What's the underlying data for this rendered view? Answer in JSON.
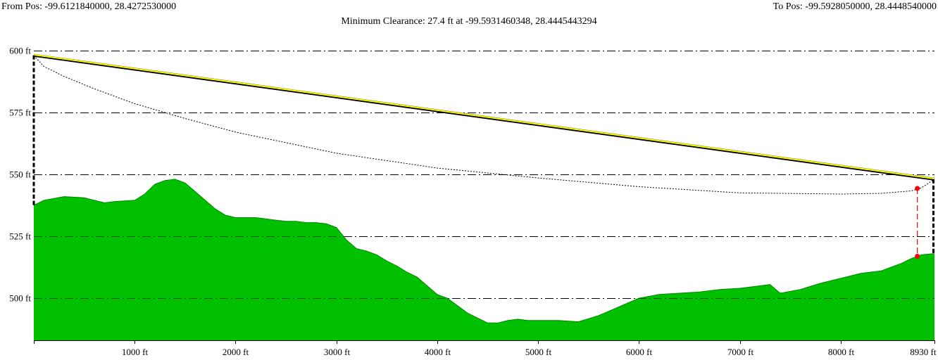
{
  "header": {
    "from_pos": "From Pos: -99.6121840000, 28.4272530000",
    "to_pos": "To Pos: -99.5928050000, 28.4448540000",
    "min_clearance": "Minimum Clearance: 27.4 ft at -99.5931460348, 28.4445443294"
  },
  "colors": {
    "terrain": "#00c000",
    "los": "#ffff00",
    "clearance_marker": "#ff0000",
    "grid": "#000000"
  },
  "chart_data": {
    "type": "area",
    "xlim": [
      0,
      8930
    ],
    "ylim": [
      483,
      605
    ],
    "x_ticks": [
      1000,
      2000,
      3000,
      4000,
      5000,
      6000,
      7000,
      8000,
      8930
    ],
    "x_tick_labels": [
      "1000 ft",
      "2000 ft",
      "3000 ft",
      "4000 ft",
      "5000 ft",
      "6000 ft",
      "7000 ft",
      "8000 ft",
      "8930 ft"
    ],
    "y_ticks": [
      500,
      525,
      550,
      575,
      600
    ],
    "y_tick_labels": [
      "500 ft",
      "525 ft",
      "550 ft",
      "575 ft",
      "600 ft"
    ],
    "grid": true,
    "terrain": {
      "x": [
        0,
        100,
        300,
        500,
        700,
        800,
        1000,
        1100,
        1200,
        1300,
        1400,
        1500,
        1600,
        1700,
        1800,
        1900,
        2000,
        2100,
        2200,
        2300,
        2400,
        2500,
        2600,
        2700,
        2800,
        2900,
        3000,
        3100,
        3200,
        3300,
        3400,
        3500,
        3600,
        3700,
        3800,
        3900,
        4000,
        4100,
        4200,
        4300,
        4400,
        4500,
        4600,
        4700,
        4800,
        4900,
        5000,
        5200,
        5400,
        5600,
        5800,
        6000,
        6200,
        6400,
        6600,
        6800,
        7000,
        7200,
        7300,
        7400,
        7600,
        7800,
        8000,
        8200,
        8400,
        8600,
        8700,
        8800,
        8930
      ],
      "y": [
        537.5,
        539.5,
        541,
        540.5,
        538.5,
        539,
        539.5,
        542,
        546,
        547.5,
        548,
        546.5,
        543,
        539.5,
        536,
        533.5,
        532.5,
        532.5,
        532.5,
        532,
        531.5,
        531,
        531,
        530.5,
        530.5,
        530,
        528.5,
        523.5,
        520,
        519,
        517.5,
        515,
        513,
        510.5,
        508.5,
        505,
        501.5,
        500,
        497,
        494,
        492,
        490,
        490,
        491,
        491.5,
        491,
        491,
        491,
        490.5,
        493,
        496.5,
        500,
        501.5,
        502,
        502.5,
        503.5,
        504,
        505,
        505.5,
        502,
        503.5,
        506,
        508,
        510,
        511,
        514,
        516,
        517.5,
        518
      ]
    },
    "line_of_sight": {
      "x": [
        0,
        8930
      ],
      "y": [
        598,
        548
      ]
    },
    "fresnel_lower": {
      "x": [
        0,
        100,
        300,
        600,
        1000,
        1500,
        2000,
        3000,
        4000,
        5000,
        6000,
        7000,
        8000,
        8400,
        8700,
        8800,
        8930
      ],
      "y": [
        598,
        593.5,
        589.5,
        584.5,
        578.5,
        572.5,
        567,
        558.5,
        552.5,
        548.5,
        545,
        542.5,
        542,
        542.3,
        543.3,
        544.5,
        548
      ]
    },
    "min_clearance_point": {
      "x": 8760,
      "y_top": 544.3,
      "y_bottom": 516.9
    }
  }
}
